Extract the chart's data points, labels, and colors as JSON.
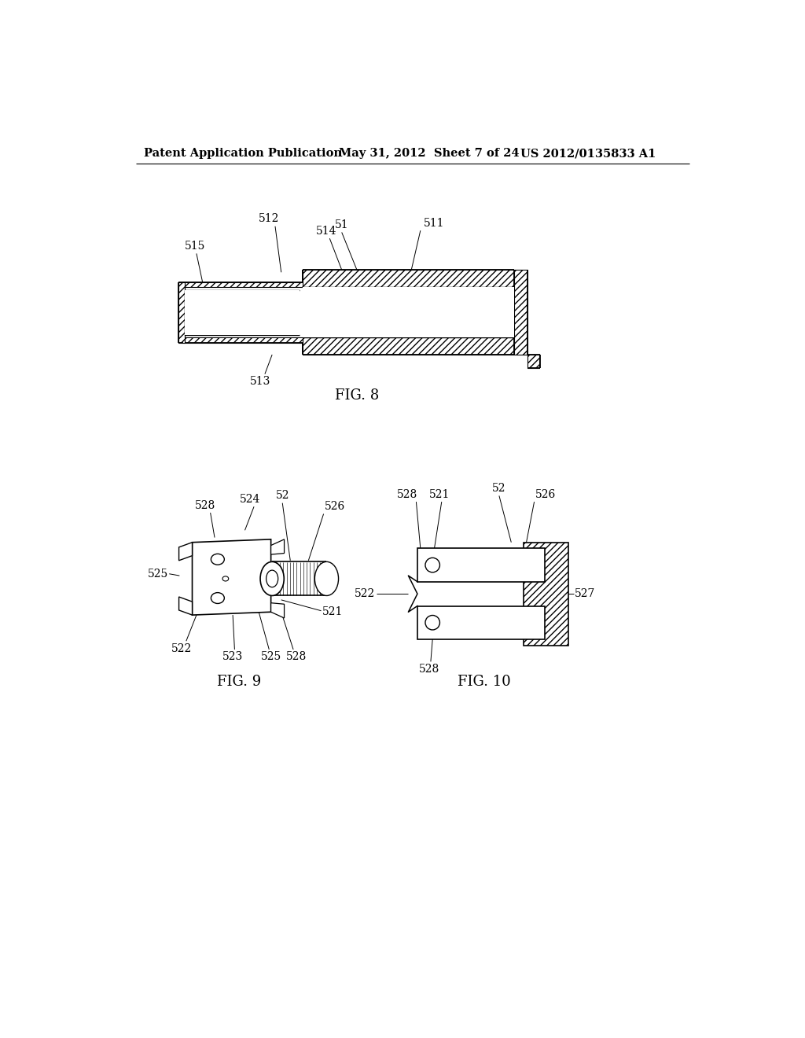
{
  "background_color": "#ffffff",
  "header_left": "Patent Application Publication",
  "header_center": "May 31, 2012  Sheet 7 of 24",
  "header_right": "US 2012/0135833 A1",
  "fig8_caption": "FIG. 8",
  "fig9_caption": "FIG. 9",
  "fig10_caption": "FIG. 10",
  "line_color": "#000000",
  "font_size_header": 10.5,
  "font_size_label": 10,
  "font_size_caption": 13
}
